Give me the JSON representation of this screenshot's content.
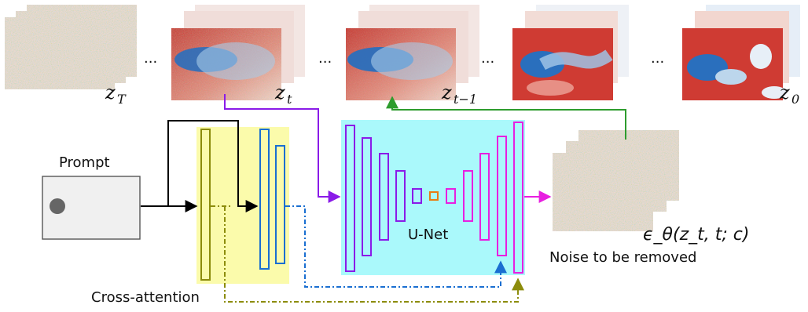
{
  "frames": {
    "zT": {
      "label": "z_T",
      "main": "z",
      "sub": "T"
    },
    "zt": {
      "label": "z_t",
      "main": "z",
      "sub": "t"
    },
    "zt1": {
      "label": "z_{t-1}",
      "main": "z",
      "sub": "t−1"
    },
    "z0": {
      "label": "z_0",
      "main": "z",
      "sub": "0"
    },
    "ellipsis": "..."
  },
  "prompt": {
    "title": "Prompt"
  },
  "encoder": {
    "label": "Cross-attention"
  },
  "unet": {
    "label": "U-Net"
  },
  "noise": {
    "formula": "ϵ_θ(z_t, t; c)",
    "caption": "Noise to be removed"
  },
  "colors": {
    "yellow_panel": "#fbfbab",
    "unet_panel": "#aaf9fb",
    "purple": "#8a1be8",
    "blue": "#1a6fd1",
    "olive": "#8c8c0c",
    "orange": "#e87d12",
    "magenta": "#e81fe0",
    "green": "#2e9c2e",
    "black": "#000000"
  }
}
